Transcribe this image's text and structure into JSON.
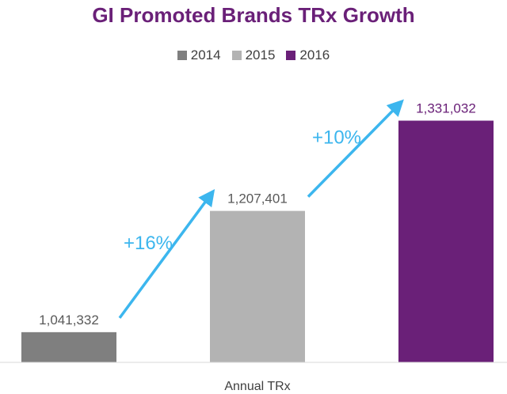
{
  "chart_data": {
    "type": "bar",
    "title": "GI Promoted Brands TRx Growth",
    "categories": [
      "Annual TRx"
    ],
    "xlabel": "",
    "ylabel": "",
    "ylim": [
      1000000,
      1350000
    ],
    "legend_position": "top",
    "grid": false,
    "series": [
      {
        "name": "2014",
        "values": [
          1041332
        ],
        "label": "1,041,332",
        "color": "#7f7f7f"
      },
      {
        "name": "2015",
        "values": [
          1207401
        ],
        "label": "1,207,401",
        "color": "#b3b3b3"
      },
      {
        "name": "2016",
        "values": [
          1331032
        ],
        "label": "1,331,032",
        "color": "#6a2078"
      }
    ],
    "annotations": [
      {
        "text": "+16%",
        "from_series": "2014",
        "to_series": "2015"
      },
      {
        "text": "+10%",
        "from_series": "2015",
        "to_series": "2016"
      }
    ]
  },
  "colors": {
    "title": "#6a2078",
    "arrow": "#3cb6ee",
    "value_label": "#595959",
    "value_label_highlight": "#6a2078",
    "axis": "#d9d9d9"
  }
}
